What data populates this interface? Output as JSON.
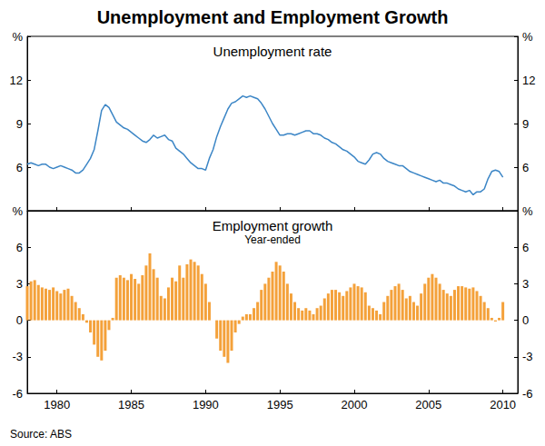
{
  "title": "Unemployment and Employment Growth",
  "source": "Source: ABS",
  "chart_data": [
    {
      "type": "line",
      "title": "Unemployment rate",
      "color": "#3c86c6",
      "x": [
        1978,
        1978.25,
        1978.5,
        1978.75,
        1979,
        1979.25,
        1979.5,
        1979.75,
        1980,
        1980.25,
        1980.5,
        1980.75,
        1981,
        1981.25,
        1981.5,
        1981.75,
        1982,
        1982.25,
        1982.5,
        1982.75,
        1983,
        1983.25,
        1983.5,
        1983.75,
        1984,
        1984.25,
        1984.5,
        1984.75,
        1985,
        1985.25,
        1985.5,
        1985.75,
        1986,
        1986.25,
        1986.5,
        1986.75,
        1987,
        1987.25,
        1987.5,
        1987.75,
        1988,
        1988.25,
        1988.5,
        1988.75,
        1989,
        1989.25,
        1989.5,
        1989.75,
        1990,
        1990.25,
        1990.5,
        1990.75,
        1991,
        1991.25,
        1991.5,
        1991.75,
        1992,
        1992.25,
        1992.5,
        1992.75,
        1993,
        1993.25,
        1993.5,
        1993.75,
        1994,
        1994.25,
        1994.5,
        1994.75,
        1995,
        1995.25,
        1995.5,
        1995.75,
        1996,
        1996.25,
        1996.5,
        1996.75,
        1997,
        1997.25,
        1997.5,
        1997.75,
        1998,
        1998.25,
        1998.5,
        1998.75,
        1999,
        1999.25,
        1999.5,
        1999.75,
        2000,
        2000.25,
        2000.5,
        2000.75,
        2001,
        2001.25,
        2001.5,
        2001.75,
        2002,
        2002.25,
        2002.5,
        2002.75,
        2003,
        2003.25,
        2003.5,
        2003.75,
        2004,
        2004.25,
        2004.5,
        2004.75,
        2005,
        2005.25,
        2005.5,
        2005.75,
        2006,
        2006.25,
        2006.5,
        2006.75,
        2007,
        2007.25,
        2007.5,
        2007.75,
        2008,
        2008.25,
        2008.5,
        2008.75,
        2009,
        2009.25,
        2009.5,
        2009.75,
        2010
      ],
      "values": [
        6.2,
        6.3,
        6.2,
        6.1,
        6.2,
        6.2,
        6.0,
        5.9,
        6.0,
        6.1,
        6.0,
        5.9,
        5.8,
        5.6,
        5.6,
        5.8,
        6.2,
        6.6,
        7.2,
        8.5,
        9.9,
        10.3,
        10.1,
        9.6,
        9.1,
        8.9,
        8.7,
        8.6,
        8.4,
        8.2,
        8.0,
        7.8,
        7.7,
        7.9,
        8.2,
        8.0,
        8.1,
        8.2,
        7.9,
        7.8,
        7.3,
        7.1,
        6.9,
        6.6,
        6.3,
        6.1,
        5.9,
        5.9,
        5.8,
        6.6,
        7.2,
        8.1,
        8.8,
        9.4,
        10.0,
        10.4,
        10.5,
        10.7,
        10.9,
        10.8,
        10.9,
        10.8,
        10.7,
        10.4,
        10.0,
        9.5,
        9.0,
        8.6,
        8.2,
        8.2,
        8.3,
        8.3,
        8.2,
        8.3,
        8.4,
        8.5,
        8.5,
        8.3,
        8.3,
        8.2,
        8.0,
        7.9,
        7.7,
        7.6,
        7.4,
        7.2,
        7.1,
        6.9,
        6.7,
        6.4,
        6.3,
        6.2,
        6.5,
        6.9,
        7.0,
        6.9,
        6.6,
        6.4,
        6.3,
        6.2,
        6.1,
        6.1,
        5.9,
        5.7,
        5.6,
        5.5,
        5.4,
        5.3,
        5.2,
        5.1,
        5.0,
        5.1,
        4.9,
        4.9,
        4.8,
        4.7,
        4.5,
        4.4,
        4.3,
        4.4,
        4.1,
        4.3,
        4.3,
        4.5,
        5.2,
        5.7,
        5.8,
        5.7,
        5.3
      ],
      "xlim": [
        1978,
        2011
      ],
      "xticks": [
        1980,
        1985,
        1990,
        1995,
        2000,
        2005,
        2010
      ],
      "ylim": [
        3,
        15
      ],
      "yticks": [
        6,
        9,
        12,
        {
          "value": 15,
          "label": "%"
        }
      ],
      "grid": false,
      "tick_labels": "y"
    },
    {
      "type": "bar",
      "title": "Employment growth",
      "subtitle": "Year-ended",
      "color": "#f4a13a",
      "x": [
        1978,
        1978.25,
        1978.5,
        1978.75,
        1979,
        1979.25,
        1979.5,
        1979.75,
        1980,
        1980.25,
        1980.5,
        1980.75,
        1981,
        1981.25,
        1981.5,
        1981.75,
        1982,
        1982.25,
        1982.5,
        1982.75,
        1983,
        1983.25,
        1983.5,
        1983.75,
        1984,
        1984.25,
        1984.5,
        1984.75,
        1985,
        1985.25,
        1985.5,
        1985.75,
        1986,
        1986.25,
        1986.5,
        1986.75,
        1987,
        1987.25,
        1987.5,
        1987.75,
        1988,
        1988.25,
        1988.5,
        1988.75,
        1989,
        1989.25,
        1989.5,
        1989.75,
        1990,
        1990.25,
        1990.5,
        1990.75,
        1991,
        1991.25,
        1991.5,
        1991.75,
        1992,
        1992.25,
        1992.5,
        1992.75,
        1993,
        1993.25,
        1993.5,
        1993.75,
        1994,
        1994.25,
        1994.5,
        1994.75,
        1995,
        1995.25,
        1995.5,
        1995.75,
        1996,
        1996.25,
        1996.5,
        1996.75,
        1997,
        1997.25,
        1997.5,
        1997.75,
        1998,
        1998.25,
        1998.5,
        1998.75,
        1999,
        1999.25,
        1999.5,
        1999.75,
        2000,
        2000.25,
        2000.5,
        2000.75,
        2001,
        2001.25,
        2001.5,
        2001.75,
        2002,
        2002.25,
        2002.5,
        2002.75,
        2003,
        2003.25,
        2003.5,
        2003.75,
        2004,
        2004.25,
        2004.5,
        2004.75,
        2005,
        2005.25,
        2005.5,
        2005.75,
        2006,
        2006.25,
        2006.5,
        2006.75,
        2007,
        2007.25,
        2007.5,
        2007.75,
        2008,
        2008.25,
        2008.5,
        2008.75,
        2009,
        2009.25,
        2009.5,
        2009.75,
        2010
      ],
      "values": [
        2.8,
        3.2,
        3.3,
        2.9,
        2.7,
        2.6,
        2.5,
        2.7,
        2.4,
        2.2,
        2.5,
        2.6,
        2.0,
        1.5,
        1.0,
        0.5,
        -0.2,
        -1.0,
        -2.0,
        -3.0,
        -3.3,
        -2.5,
        -0.8,
        0.2,
        3.5,
        3.7,
        3.5,
        3.3,
        3.8,
        3.4,
        3.0,
        3.7,
        4.5,
        5.5,
        4.2,
        3.5,
        2.0,
        1.8,
        2.7,
        3.5,
        3.2,
        4.5,
        3.5,
        4.6,
        5.0,
        4.8,
        4.5,
        3.8,
        3.0,
        1.5,
        0.0,
        -1.5,
        -2.5,
        -3.0,
        -3.5,
        -2.5,
        -1.0,
        -0.3,
        0.3,
        0.5,
        0.5,
        1.0,
        1.5,
        2.5,
        3.0,
        3.5,
        4.0,
        4.8,
        4.5,
        4.0,
        3.0,
        2.2,
        1.5,
        1.0,
        0.8,
        1.0,
        0.8,
        0.5,
        1.0,
        1.2,
        1.8,
        2.2,
        2.5,
        2.5,
        2.3,
        2.0,
        2.4,
        2.7,
        3.0,
        2.8,
        2.7,
        2.3,
        1.2,
        1.0,
        0.8,
        0.5,
        1.5,
        2.0,
        2.5,
        2.8,
        3.0,
        2.5,
        1.8,
        2.0,
        1.5,
        1.2,
        2.2,
        3.0,
        3.5,
        3.8,
        3.5,
        3.0,
        2.5,
        2.2,
        2.0,
        2.5,
        2.8,
        2.8,
        2.7,
        2.6,
        2.7,
        2.4,
        2.0,
        1.5,
        1.0,
        0.2,
        -0.1,
        0.2,
        1.5
      ],
      "xlim": [
        1978,
        2011
      ],
      "xticks": [
        1980,
        1985,
        1990,
        1995,
        2000,
        2005,
        2010
      ],
      "ylim": [
        -6,
        9
      ],
      "yticks": [
        -6,
        -3,
        0,
        3,
        6,
        {
          "value": 9,
          "label": "%"
        }
      ],
      "grid": false
    }
  ]
}
